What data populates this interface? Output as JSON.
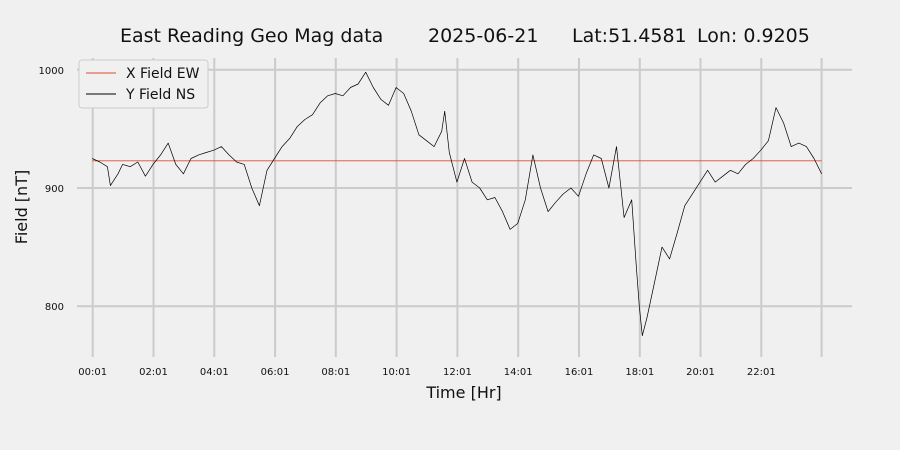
{
  "title": {
    "name": "East Reading Geo Mag data",
    "date": "2025-06-21",
    "lat": "Lat:51.4581",
    "lon": "Lon: 0.9205"
  },
  "chart_data": {
    "type": "line",
    "xlabel": "Time  [Hr]",
    "ylabel": "Field  [nT]",
    "xlim": [
      -0.5,
      25
    ],
    "ylim": [
      757,
      1010
    ],
    "grid": true,
    "legend_position": "top-left",
    "x_ticks": [
      {
        "value": 0.0167,
        "label": "00:01"
      },
      {
        "value": 2.0167,
        "label": "02:01"
      },
      {
        "value": 4.0167,
        "label": "04:01"
      },
      {
        "value": 6.0167,
        "label": "06:01"
      },
      {
        "value": 8.0167,
        "label": "08:01"
      },
      {
        "value": 10.0167,
        "label": "10:01"
      },
      {
        "value": 12.0167,
        "label": "12:01"
      },
      {
        "value": 14.0167,
        "label": "14:01"
      },
      {
        "value": 16.0167,
        "label": "16:01"
      },
      {
        "value": 18.0167,
        "label": "18:01"
      },
      {
        "value": 20.0167,
        "label": "20:01"
      },
      {
        "value": 22.0167,
        "label": "22:01"
      },
      {
        "value": 24.0,
        "label": ""
      }
    ],
    "y_ticks": [
      {
        "value": 800,
        "label": "800"
      },
      {
        "value": 900,
        "label": "900"
      },
      {
        "value": 1000,
        "label": "1000"
      }
    ],
    "series": [
      {
        "name": "X Field EW",
        "color": "#e24a33",
        "x": [
          0,
          24
        ],
        "y": [
          923,
          923
        ]
      },
      {
        "name": "Y Field NS",
        "color": "#000000",
        "x": [
          0,
          0.25,
          0.5,
          0.6,
          0.85,
          1.0,
          1.25,
          1.5,
          1.75,
          2.0,
          2.25,
          2.5,
          2.75,
          3.0,
          3.25,
          3.5,
          3.75,
          4.0,
          4.25,
          4.5,
          4.75,
          5.0,
          5.25,
          5.5,
          5.75,
          6.0,
          6.25,
          6.5,
          6.75,
          7.0,
          7.25,
          7.5,
          7.75,
          8.0,
          8.25,
          8.5,
          8.75,
          9.0,
          9.25,
          9.5,
          9.75,
          10.0,
          10.25,
          10.5,
          10.75,
          11.0,
          11.25,
          11.5,
          11.6,
          11.75,
          12.0,
          12.25,
          12.5,
          12.75,
          13.0,
          13.25,
          13.5,
          13.75,
          14.0,
          14.25,
          14.5,
          14.75,
          15.0,
          15.25,
          15.5,
          15.75,
          16.0,
          16.25,
          16.5,
          16.75,
          17.0,
          17.25,
          17.5,
          17.75,
          17.9,
          18.0,
          18.1,
          18.25,
          18.5,
          18.75,
          19.0,
          19.25,
          19.5,
          19.75,
          20.0,
          20.25,
          20.5,
          20.75,
          21.0,
          21.25,
          21.5,
          21.75,
          22.0,
          22.25,
          22.5,
          22.75,
          23.0,
          23.25,
          23.5,
          23.75,
          24.0
        ],
        "y": [
          925,
          922,
          918,
          902,
          912,
          920,
          918,
          922,
          910,
          920,
          928,
          938,
          920,
          912,
          925,
          928,
          930,
          932,
          935,
          928,
          922,
          920,
          900,
          885,
          915,
          925,
          935,
          942,
          952,
          958,
          962,
          972,
          978,
          980,
          978,
          985,
          988,
          998,
          985,
          975,
          970,
          985,
          980,
          965,
          945,
          940,
          935,
          948,
          965,
          930,
          905,
          925,
          905,
          900,
          890,
          892,
          880,
          865,
          870,
          890,
          928,
          900,
          880,
          888,
          895,
          900,
          893,
          912,
          928,
          925,
          900,
          935,
          875,
          890,
          835,
          800,
          775,
          790,
          820,
          850,
          840,
          862,
          885,
          895,
          905,
          915,
          905,
          910,
          915,
          912,
          920,
          925,
          932,
          940,
          968,
          955,
          935,
          938,
          935,
          925,
          912
        ]
      }
    ]
  }
}
